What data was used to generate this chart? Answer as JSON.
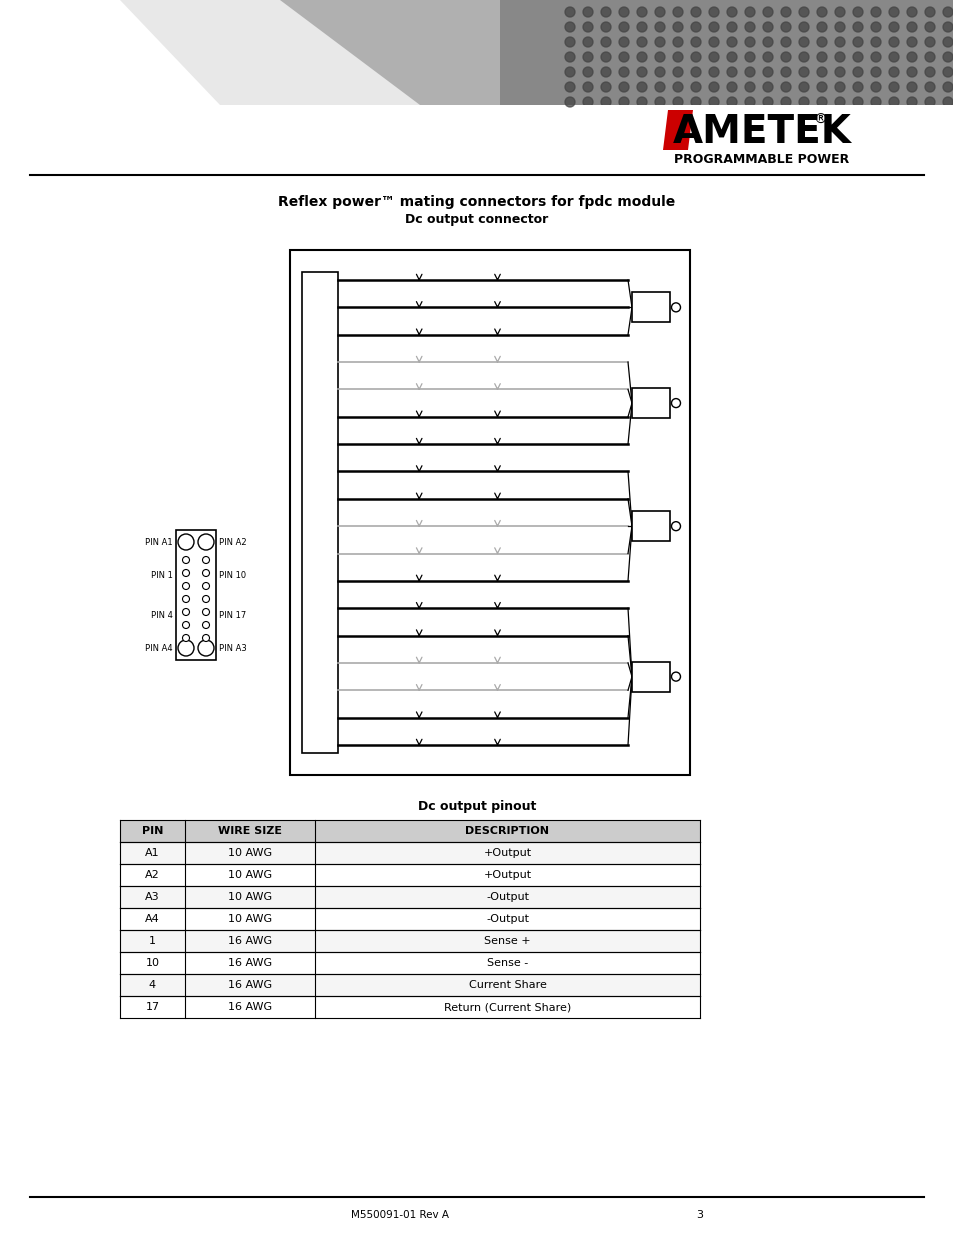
{
  "bg_color": "#ffffff",
  "ametek_text": "AMETEK",
  "sub_text": "PROGRAMMABLE POWER",
  "section_title1": "Reflex power™ mating connectors for fpdc module",
  "section_title2": "Dc output connector",
  "section_title3": "Dc output pinout",
  "table_header": [
    "PIN",
    "WIRE SIZE",
    "DESCRIPTION"
  ],
  "table_rows": [
    [
      "A1",
      "10 AWG",
      "+Output"
    ],
    [
      "A2",
      "10 AWG",
      "+Output"
    ],
    [
      "A3",
      "10 AWG",
      "-Output"
    ],
    [
      "A4",
      "10 AWG",
      "-Output"
    ],
    [
      "1",
      "16 AWG",
      "Sense +"
    ],
    [
      "10",
      "16 AWG",
      "Sense -"
    ],
    [
      "4",
      "16 AWG",
      "Current Share"
    ],
    [
      "17",
      "16 AWG",
      "Return (Current Share)"
    ]
  ],
  "page_text": "3",
  "doc_number": "M550091-01 Rev A"
}
